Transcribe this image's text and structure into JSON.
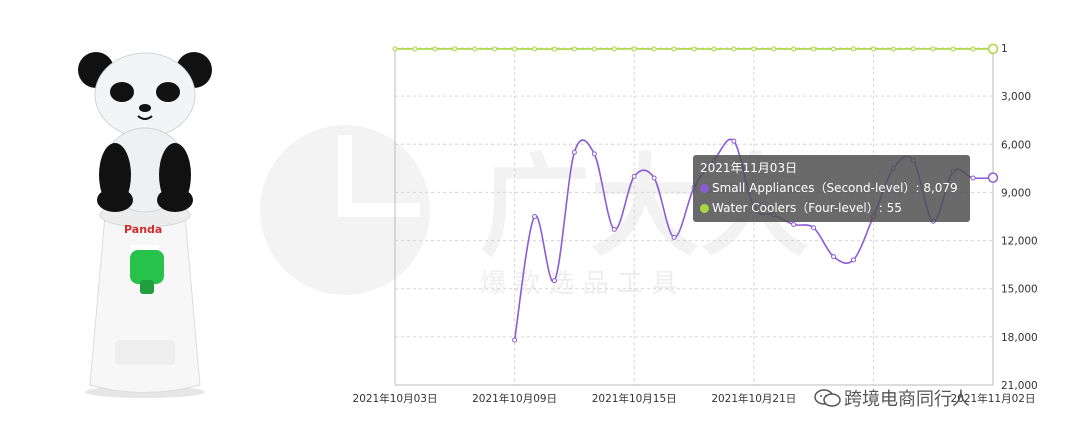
{
  "product": {
    "logo_text": "Panda"
  },
  "watermark": {
    "brand_chars": "广大大",
    "tagline": "爆 款 选 品 工 具"
  },
  "tooltip": {
    "date": "2021年11月03日",
    "rows": [
      {
        "label": "Small Appliances（Second-level）: 8,079",
        "color": "#8b5cd6"
      },
      {
        "label": "Water Coolers（Four-level）: 55",
        "color": "#a8d83e"
      }
    ]
  },
  "credit": {
    "text": "跨境电商同行人"
  },
  "chart_data": {
    "type": "line",
    "y_inverted": true,
    "y_ticks": [
      1,
      3000,
      6000,
      9000,
      12000,
      15000,
      18000,
      21000
    ],
    "y_tick_labels": [
      "1",
      "3,000",
      "6,000",
      "9,000",
      "12,000",
      "15,000",
      "18,000",
      "21,000"
    ],
    "ylim": [
      1,
      21000
    ],
    "x_tick_labels": [
      "2021年10月03日",
      "2021年10月09日",
      "2021年10月15日",
      "2021年10月21日",
      "",
      "2021年11月02日"
    ],
    "x_start_label": "2021年10月03日",
    "grid": true,
    "series": [
      {
        "name": "Small Appliances（Second-level）",
        "color": "#8b5cd6",
        "start_index": 6,
        "values": [
          18200,
          10500,
          14500,
          6500,
          6600,
          11300,
          8000,
          8100,
          11800,
          8700,
          7000,
          5800,
          9900,
          10400,
          11000,
          11200,
          13000,
          13200,
          10500,
          7500,
          7000,
          10800,
          7700,
          8100,
          8079
        ]
      },
      {
        "name": "Water Coolers（Four-level）",
        "color": "#a8d83e",
        "start_index": 0,
        "values": [
          55,
          60,
          62,
          58,
          64,
          60,
          61,
          65,
          70,
          60,
          62,
          58,
          55,
          60,
          63,
          61,
          66,
          62,
          60,
          58,
          64,
          60,
          62,
          58,
          60,
          63,
          55,
          58,
          62,
          60,
          55
        ]
      }
    ]
  }
}
